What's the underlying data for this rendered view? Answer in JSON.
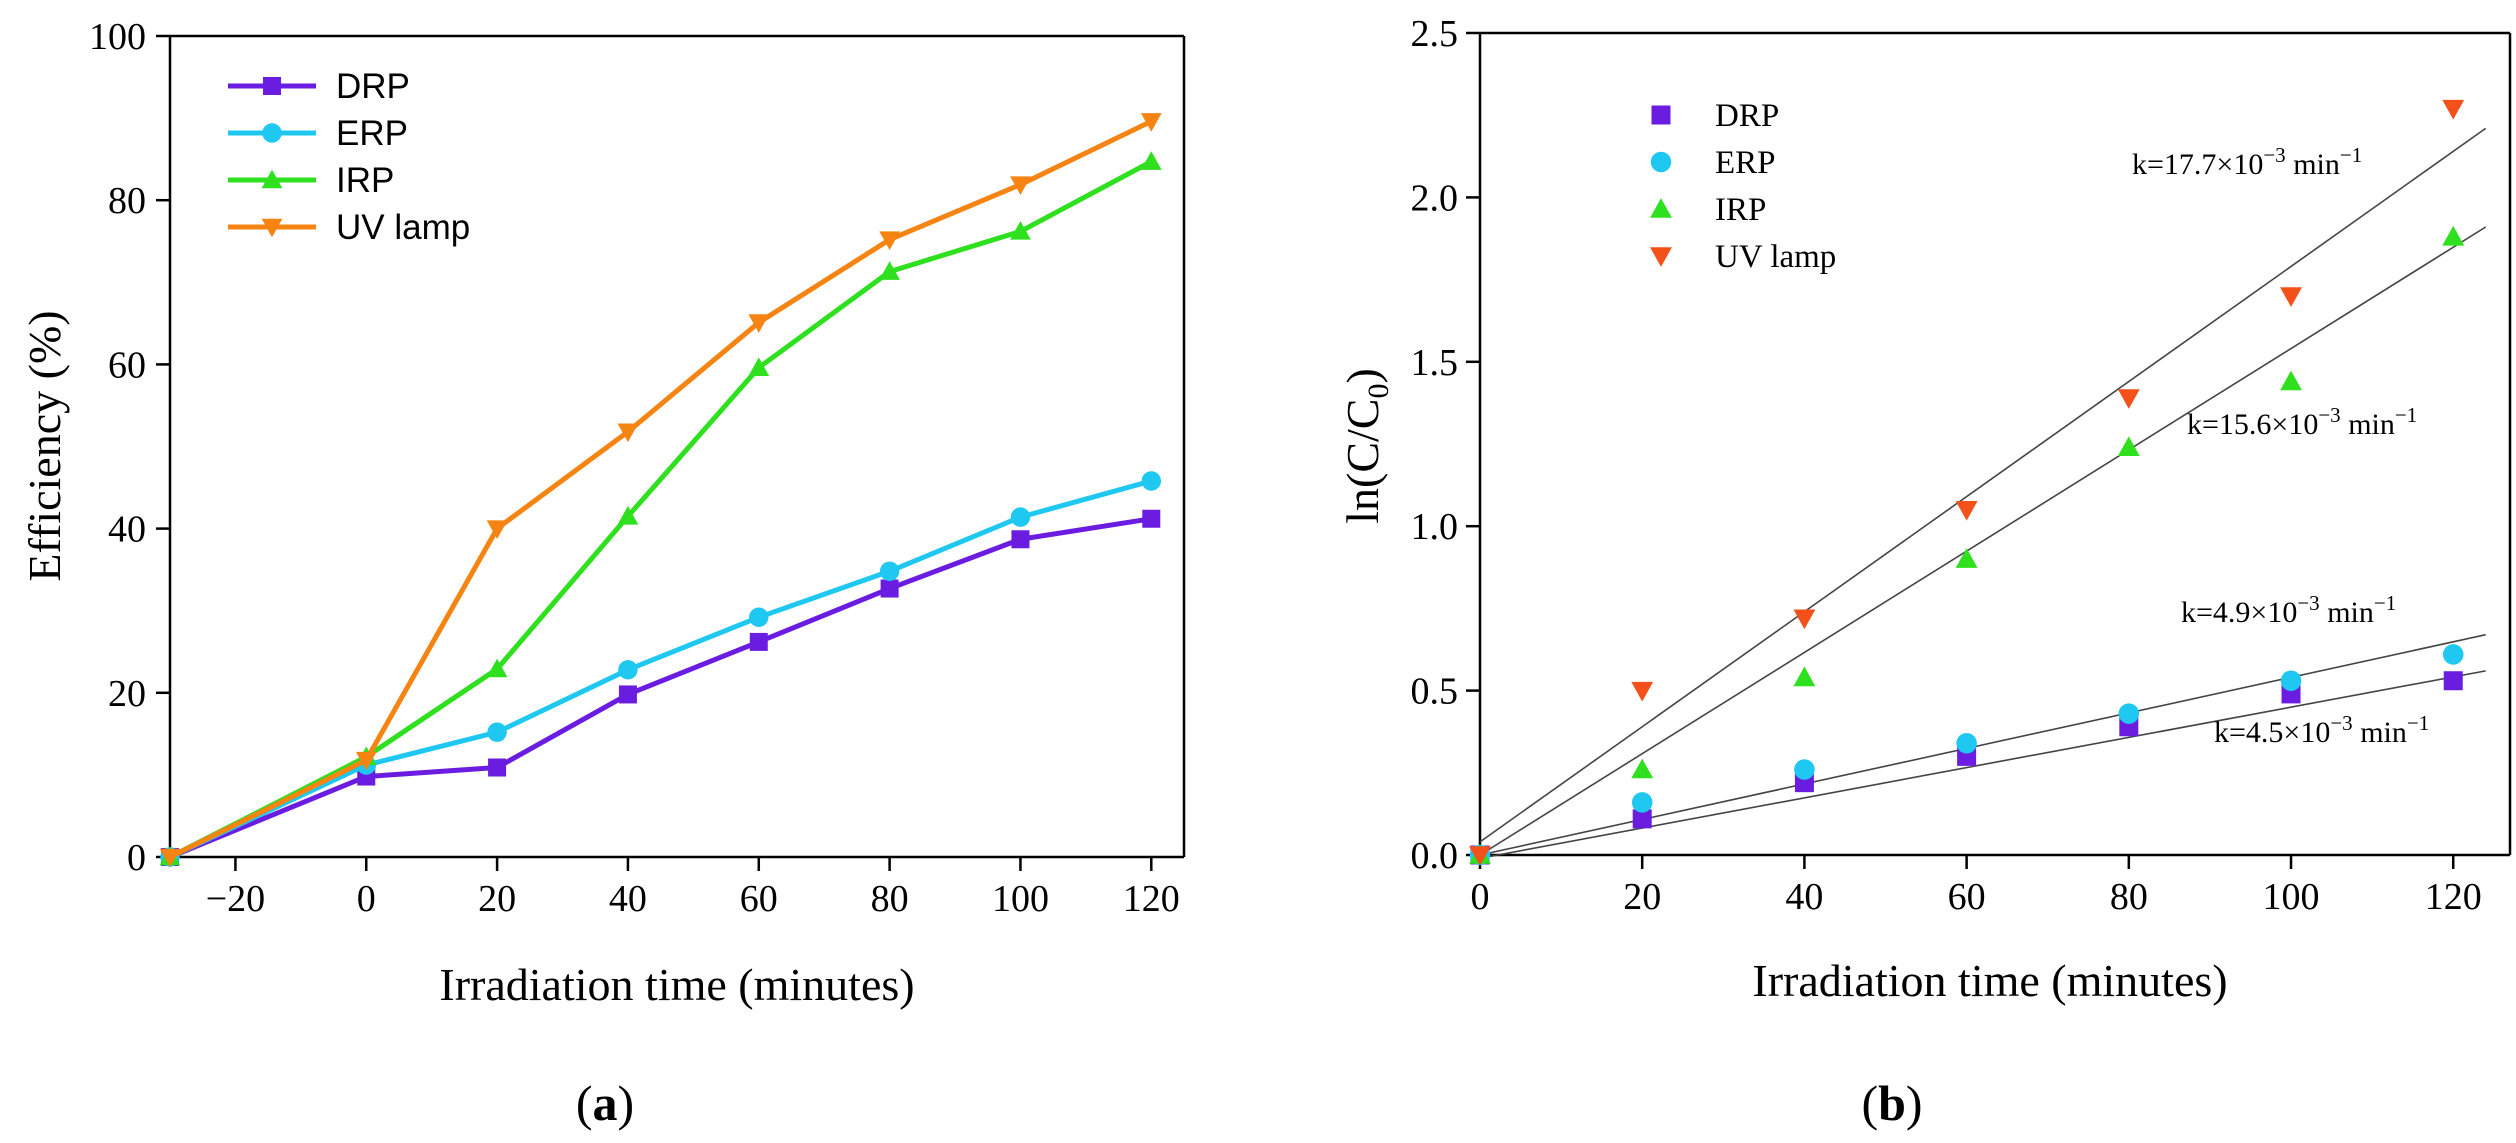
{
  "chart_data": [
    {
      "type": "line",
      "panel_label": "a",
      "xlabel": "Irradiation time (minutes)",
      "ylabel": "Efficiency (%)",
      "xlim": [
        -30,
        125
      ],
      "ylim": [
        0,
        100
      ],
      "xticks": [
        -20,
        0,
        20,
        40,
        60,
        80,
        100,
        120
      ],
      "yticks": [
        0,
        20,
        40,
        60,
        80,
        100
      ],
      "x": [
        -30,
        0,
        20,
        40,
        60,
        80,
        100,
        120
      ],
      "legend_position": "top-left",
      "grid": false,
      "series": [
        {
          "name": "DRP",
          "color": "#6a1de0",
          "marker": "square",
          "values": [
            0,
            9.8,
            10.9,
            19.8,
            26.2,
            32.7,
            38.7,
            41.2
          ]
        },
        {
          "name": "ERP",
          "color": "#1ec8f0",
          "marker": "circle",
          "values": [
            0,
            11.2,
            15.2,
            22.8,
            29.2,
            34.8,
            41.4,
            45.8
          ]
        },
        {
          "name": "IRP",
          "color": "#2ee01e",
          "marker": "triangle-up",
          "values": [
            0,
            12.2,
            22.9,
            41.5,
            59.6,
            71.3,
            76.2,
            84.7
          ]
        },
        {
          "name": "UV lamp",
          "color": "#f58412",
          "marker": "triangle-down",
          "values": [
            0,
            11.8,
            40.0,
            51.8,
            65.1,
            75.2,
            81.9,
            89.6
          ]
        }
      ]
    },
    {
      "type": "scatter",
      "panel_label": "b",
      "xlabel": "Irradiation time (minutes)",
      "ylabel": "ln(C/C0)",
      "ylabel_main": "ln(C/C",
      "ylabel_sub": "0",
      "ylabel_end": ")",
      "xlim": [
        0,
        127
      ],
      "ylim": [
        0,
        2.5
      ],
      "xticks": [
        0,
        20,
        40,
        60,
        80,
        100,
        120
      ],
      "yticks": [
        0.0,
        0.5,
        1.0,
        1.5,
        2.0,
        2.5
      ],
      "x": [
        0,
        20,
        40,
        60,
        80,
        100,
        120
      ],
      "legend_position": "top-left",
      "grid": false,
      "series": [
        {
          "name": "DRP",
          "color": "#6a1de0",
          "marker": "square",
          "values": [
            0,
            0.11,
            0.22,
            0.3,
            0.39,
            0.49,
            0.53
          ]
        },
        {
          "name": "ERP",
          "color": "#1ec8f0",
          "marker": "circle",
          "values": [
            0,
            0.16,
            0.26,
            0.34,
            0.43,
            0.53,
            0.61
          ]
        },
        {
          "name": "IRP",
          "color": "#2ee01e",
          "marker": "triangle-up",
          "values": [
            0,
            0.26,
            0.54,
            0.9,
            1.24,
            1.44,
            1.88
          ]
        },
        {
          "name": "UV lamp",
          "color": "#f4501a",
          "marker": "triangle-down",
          "values": [
            0,
            0.5,
            0.72,
            1.05,
            1.39,
            1.7,
            2.27
          ]
        }
      ],
      "fits": [
        {
          "series": "UV lamp",
          "x_range": [
            0,
            124
          ],
          "y_range": [
            0.04,
            2.21
          ]
        },
        {
          "series": "IRP",
          "x_range": [
            0,
            124
          ],
          "y_range": [
            0.0,
            1.91
          ]
        },
        {
          "series": "ERP",
          "x_range": [
            0,
            124
          ],
          "y_range": [
            0.0,
            0.67
          ]
        },
        {
          "series": "DRP",
          "x_range": [
            0,
            124
          ],
          "y_range": [
            -0.01,
            0.56
          ]
        }
      ],
      "annotations": [
        {
          "text": "k=17.7×10",
          "exp": "−3",
          "unit": " min",
          "unit_exp": "−1"
        },
        {
          "text": "k=15.6×10",
          "exp": "−3",
          "unit": " min",
          "unit_exp": "−1"
        },
        {
          "text": "k=4.9×10",
          "exp": "−3",
          "unit": " min",
          "unit_exp": "−1"
        },
        {
          "text": "k=4.5×10",
          "exp": "−3",
          "unit": " min",
          "unit_exp": "−1"
        }
      ]
    }
  ]
}
